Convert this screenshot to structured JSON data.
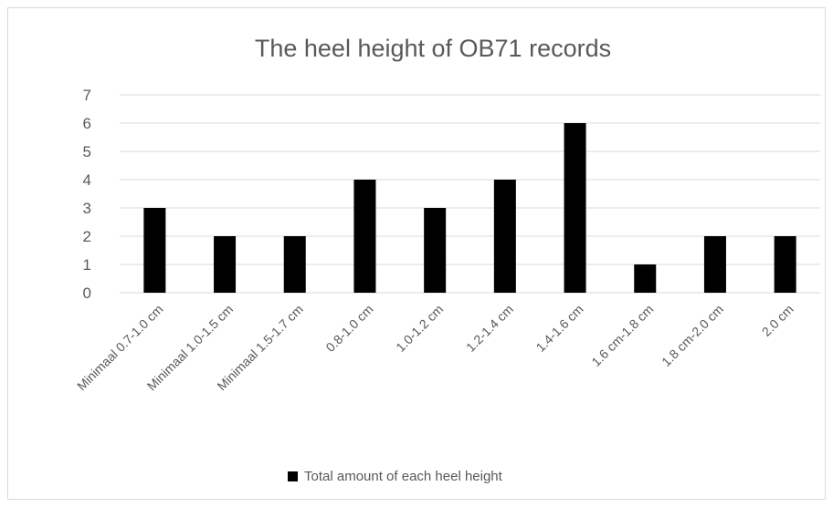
{
  "chart_data": {
    "type": "bar",
    "title": "The heel height of OB71 records",
    "xlabel": "",
    "ylabel": "",
    "categories": [
      "Minimaal 0.7-1.0 cm",
      "Minimaal 1.0-1.5 cm",
      "Minimaal 1.5-1.7 cm",
      "0.8-1.0 cm",
      "1.0-1.2 cm",
      "1.2-1.4 cm",
      "1.4-1.6 cm",
      "1.6 cm-1.8 cm",
      "1.8 cm-2.0 cm",
      "2.0 cm"
    ],
    "series": [
      {
        "name": "Total amount of each heel height",
        "values": [
          3,
          2,
          2,
          4,
          3,
          4,
          6,
          1,
          2,
          2
        ],
        "color": "#000000"
      }
    ],
    "ylim": [
      0,
      7
    ],
    "yticks": [
      "0",
      "1",
      "2",
      "3",
      "4",
      "5",
      "6",
      "7"
    ],
    "grid": true,
    "gridColor": "#d9d9d9",
    "legend_position": "bottom",
    "textColor": "#595959"
  }
}
